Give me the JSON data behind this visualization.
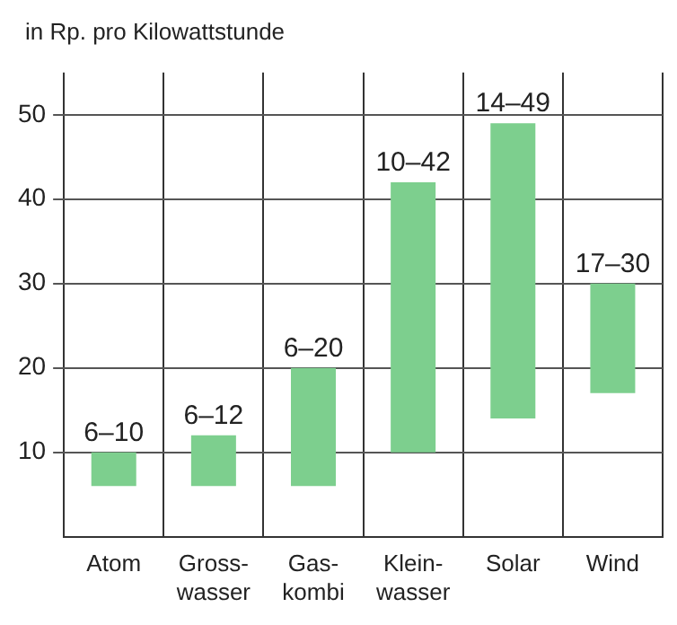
{
  "chart_data": {
    "type": "bar",
    "ylabel": "in Rp. pro Kilowattstunde",
    "categories": [
      "Atom",
      "Gross-\nwasser",
      "Gas-\nkombi",
      "Klein-\nwasser",
      "Solar",
      "Wind"
    ],
    "base": [
      6,
      6,
      6,
      10,
      14,
      17
    ],
    "values": [
      4,
      6,
      14,
      32,
      35,
      13
    ],
    "value_labels": [
      "6–10",
      "6–12",
      "6–20",
      "10–42",
      "14–49",
      "17–30"
    ],
    "color": "#7dcf8e",
    "ylim": [
      0,
      55
    ],
    "yticks": [
      10,
      20,
      30,
      40,
      50
    ],
    "grid": true,
    "legend": false
  }
}
